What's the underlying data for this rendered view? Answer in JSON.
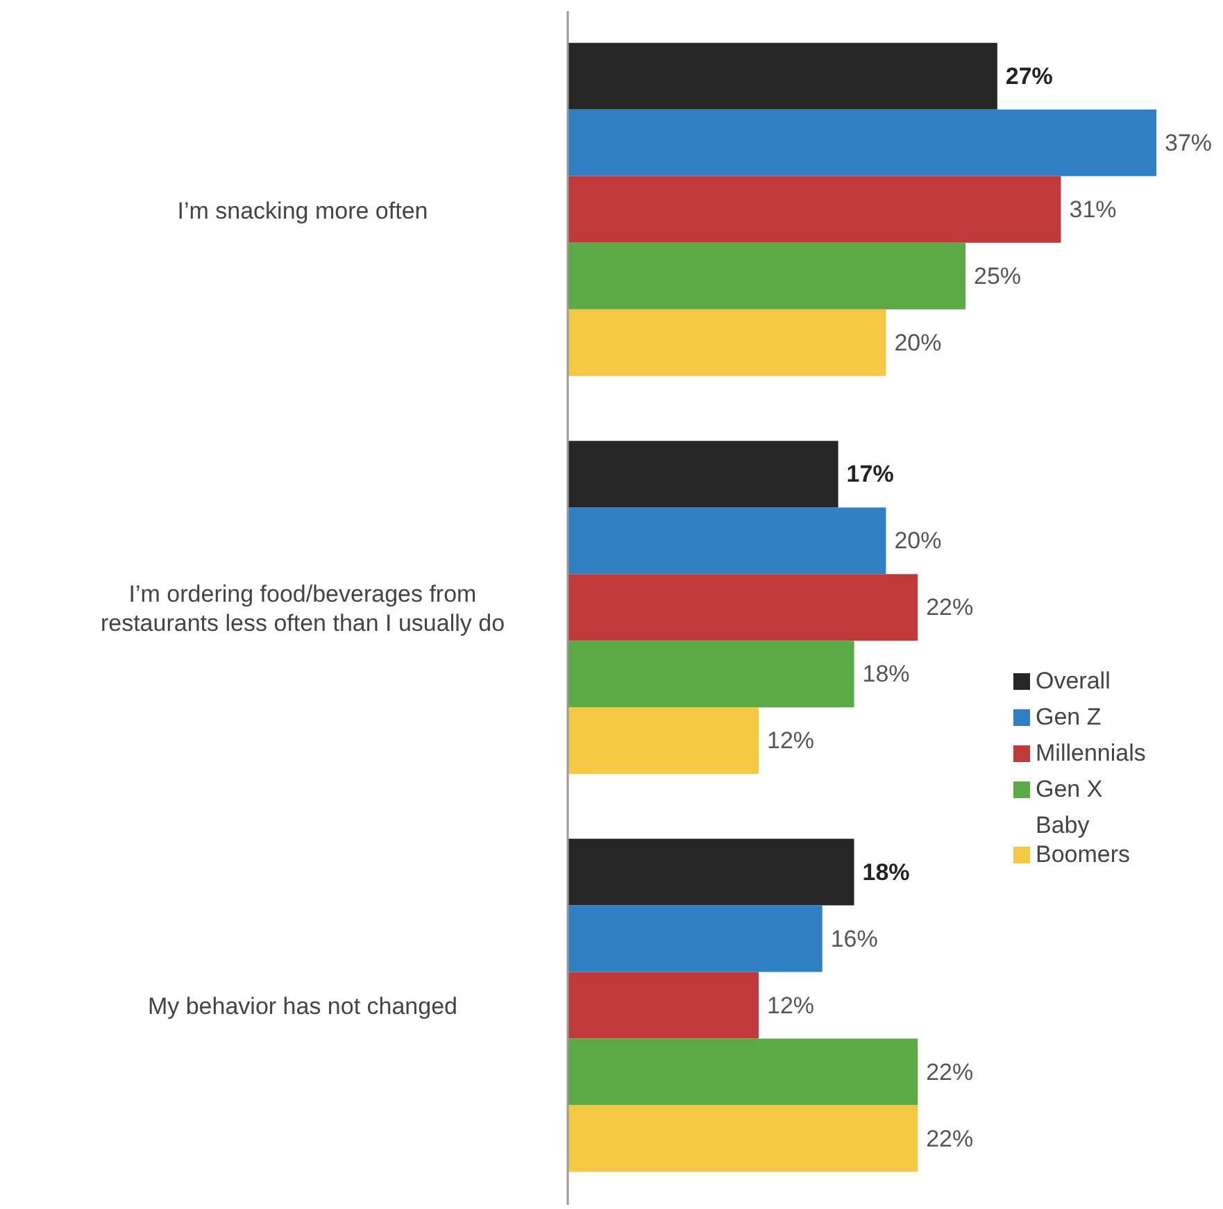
{
  "chart_data": {
    "type": "bar",
    "orientation": "horizontal",
    "categories": [
      "I’m snacking more often",
      "I’m ordering food/beverages from restaurants less often than I usually do",
      "My behavior has not changed"
    ],
    "series": [
      {
        "name": "Overall",
        "color": "#262626",
        "values": [
          27,
          17,
          18
        ],
        "value_labels": [
          "27%",
          "17%",
          "18%"
        ]
      },
      {
        "name": "Gen Z",
        "color": "#2f80c3",
        "values": [
          37,
          20,
          16
        ],
        "value_labels": [
          "37%",
          "20%",
          "16%"
        ]
      },
      {
        "name": "Millennials",
        "color": "#c0393b",
        "values": [
          31,
          22,
          12
        ],
        "value_labels": [
          "31%",
          "22%",
          "12%"
        ]
      },
      {
        "name": "Gen X",
        "color": "#5aab46",
        "values": [
          25,
          18,
          22
        ],
        "value_labels": [
          "25%",
          "18%",
          "22%"
        ]
      },
      {
        "name": "Baby Boomers",
        "color": "#f4c842",
        "values": [
          20,
          12,
          22
        ],
        "value_labels": [
          "20%",
          "12%",
          "22%"
        ]
      }
    ],
    "legend": "right",
    "grid": false
  }
}
